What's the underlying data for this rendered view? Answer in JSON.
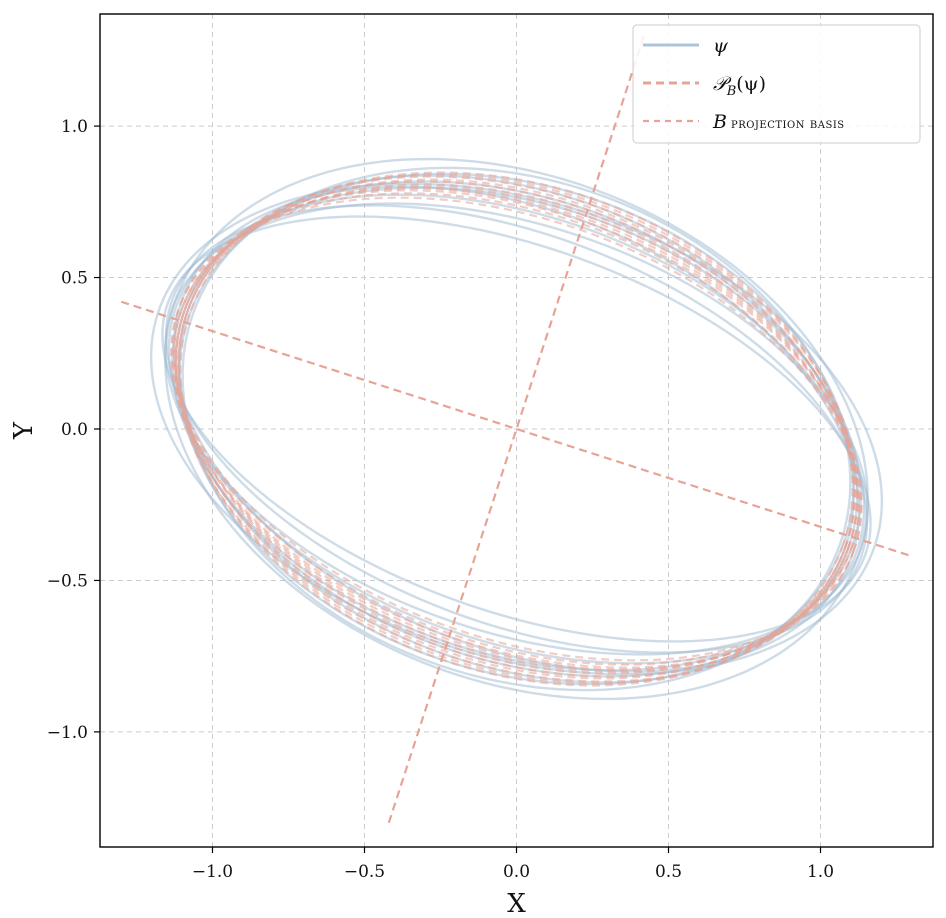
{
  "chart_data": {
    "type": "line",
    "title": "",
    "xlabel": "X",
    "ylabel": "Y",
    "xlim": [
      -1.37,
      1.37
    ],
    "ylim": [
      -1.38,
      1.37
    ],
    "aspect": "equal",
    "xticks": [
      -1.0,
      -0.5,
      0.0,
      0.5,
      1.0
    ],
    "yticks": [
      -1.0,
      -0.5,
      0.0,
      0.5,
      1.0
    ],
    "xtick_labels": [
      "−1.0",
      "−0.5",
      "0.0",
      "0.5",
      "1.0"
    ],
    "ytick_labels": [
      "−1.0",
      "−0.5",
      "0.0",
      "0.5",
      "1.0"
    ],
    "grid": true,
    "grid_style": "dashed",
    "legend_position": "top-right",
    "colors": {
      "psi": "#9dbad2",
      "projection": "#e6a496",
      "basis": "#e6a496",
      "grid": "#cccccc",
      "frame": "#000000"
    },
    "legend": [
      {
        "key": "psi",
        "label": "ψ",
        "style": "solid"
      },
      {
        "key": "projection",
        "label": "𝒫",
        "sub": "B",
        "suffix": "(ψ)",
        "style": "dashed"
      },
      {
        "key": "basis",
        "label": "B",
        "suffix": " projection basis",
        "style": "dashed-thin"
      }
    ],
    "ellipse_family": {
      "description_rotation_deg": -20,
      "psi_curves": [
        {
          "a": 1.22,
          "b": 0.6,
          "rot": -20
        },
        {
          "a": 1.21,
          "b": 0.64,
          "rot": -21
        },
        {
          "a": 1.2,
          "b": 0.67,
          "rot": -19
        },
        {
          "a": 1.19,
          "b": 0.7,
          "rot": -20
        },
        {
          "a": 1.18,
          "b": 0.72,
          "rot": -22
        },
        {
          "a": 1.17,
          "b": 0.74,
          "rot": -19
        },
        {
          "a": 1.16,
          "b": 0.76,
          "rot": -20
        },
        {
          "a": 1.15,
          "b": 0.78,
          "rot": -21
        },
        {
          "a": 1.14,
          "b": 0.8,
          "rot": -19
        },
        {
          "a": 1.13,
          "b": 0.82,
          "rot": -20
        },
        {
          "a": 1.24,
          "b": 0.75,
          "rot": -18
        },
        {
          "a": 1.2,
          "b": 0.83,
          "rot": -22
        }
      ],
      "projection_curves": [
        {
          "a": 1.18,
          "b": 0.69,
          "rot": -20
        },
        {
          "a": 1.17,
          "b": 0.71,
          "rot": -20
        },
        {
          "a": 1.17,
          "b": 0.73,
          "rot": -20
        },
        {
          "a": 1.16,
          "b": 0.74,
          "rot": -20
        },
        {
          "a": 1.16,
          "b": 0.76,
          "rot": -20
        },
        {
          "a": 1.15,
          "b": 0.77,
          "rot": -20
        },
        {
          "a": 1.15,
          "b": 0.79,
          "rot": -20
        },
        {
          "a": 1.14,
          "b": 0.8,
          "rot": -20
        },
        {
          "a": 1.18,
          "b": 0.72,
          "rot": -20
        },
        {
          "a": 1.16,
          "b": 0.78,
          "rot": -20
        },
        {
          "a": 1.15,
          "b": 0.75,
          "rot": -20
        }
      ]
    },
    "basis_lines": [
      {
        "x": [
          -1.3,
          1.3
        ],
        "y": [
          0.42,
          -0.42
        ]
      },
      {
        "x": [
          -0.42,
          0.42
        ],
        "y": [
          -1.3,
          1.3
        ]
      }
    ]
  }
}
